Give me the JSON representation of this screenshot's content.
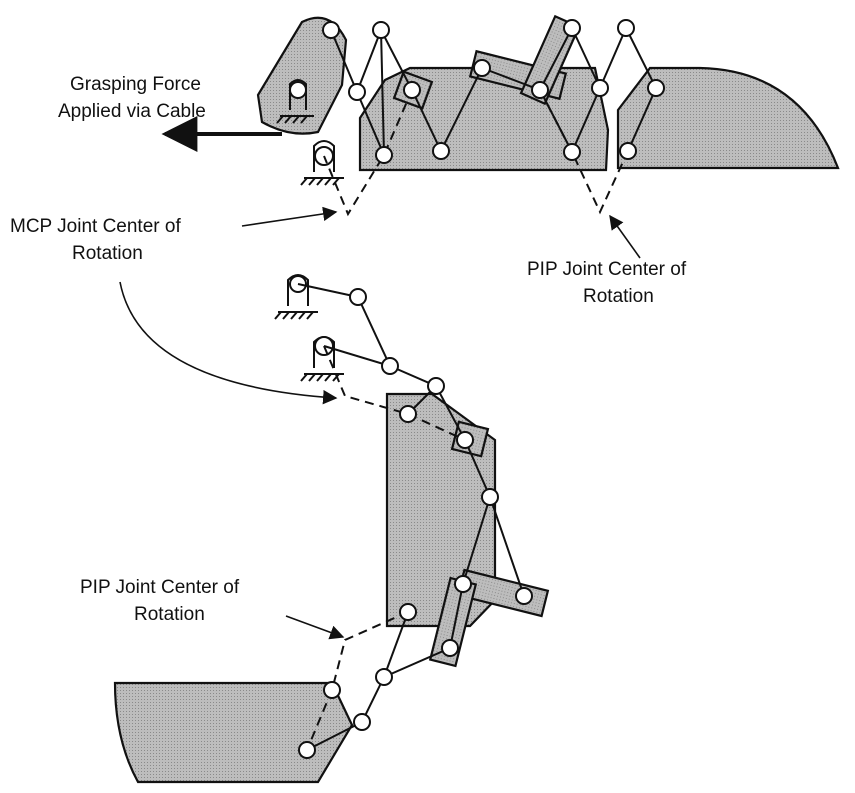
{
  "labels": {
    "grasping_force_line1": "Grasping Force",
    "grasping_force_line2": "Applied via Cable",
    "mcp_line1": "MCP Joint Center of",
    "mcp_line2": "Rotation",
    "pip_top_line1": "PIP Joint Center of",
    "pip_top_line2": "Rotation",
    "pip_bottom_line1": "PIP Joint Center of",
    "pip_bottom_line2": "Rotation"
  }
}
